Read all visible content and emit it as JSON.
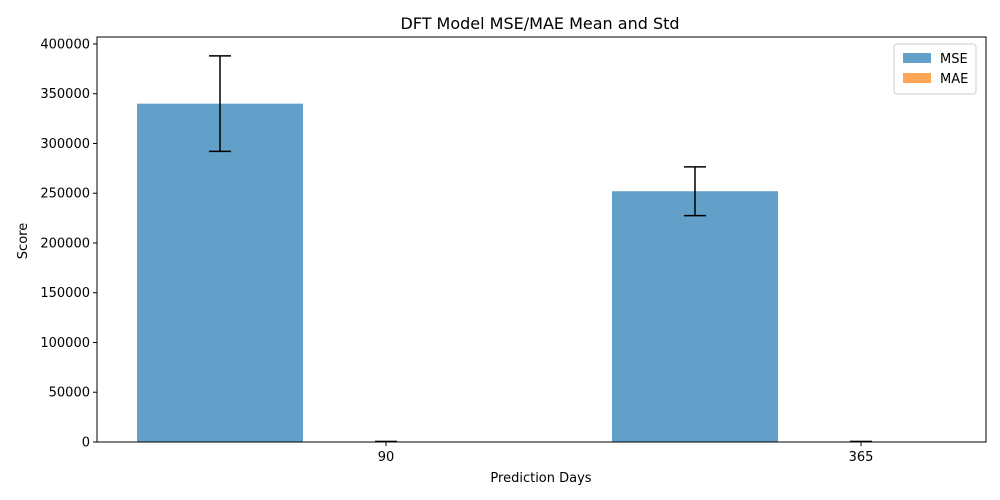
{
  "chart_data": {
    "type": "bar",
    "title": "DFT Model MSE/MAE Mean and Std",
    "xlabel": "Prediction Days",
    "ylabel": "Score",
    "categories": [
      "90",
      "365"
    ],
    "series": [
      {
        "name": "MSE",
        "values": [
          340000,
          252000
        ],
        "errors": [
          48000,
          24500
        ],
        "color": "#1f77b4"
      },
      {
        "name": "MAE",
        "values": [
          460,
          410
        ],
        "errors": [
          40,
          30
        ],
        "color": "#ff7f0e"
      }
    ],
    "ylim": [
      0,
      407000
    ],
    "yticks": [
      0,
      50000,
      100000,
      150000,
      200000,
      250000,
      300000,
      350000,
      400000
    ],
    "grid": false,
    "legend_position": "top-right",
    "bar_opacity": 0.7,
    "error_bar_color": "#000000"
  }
}
